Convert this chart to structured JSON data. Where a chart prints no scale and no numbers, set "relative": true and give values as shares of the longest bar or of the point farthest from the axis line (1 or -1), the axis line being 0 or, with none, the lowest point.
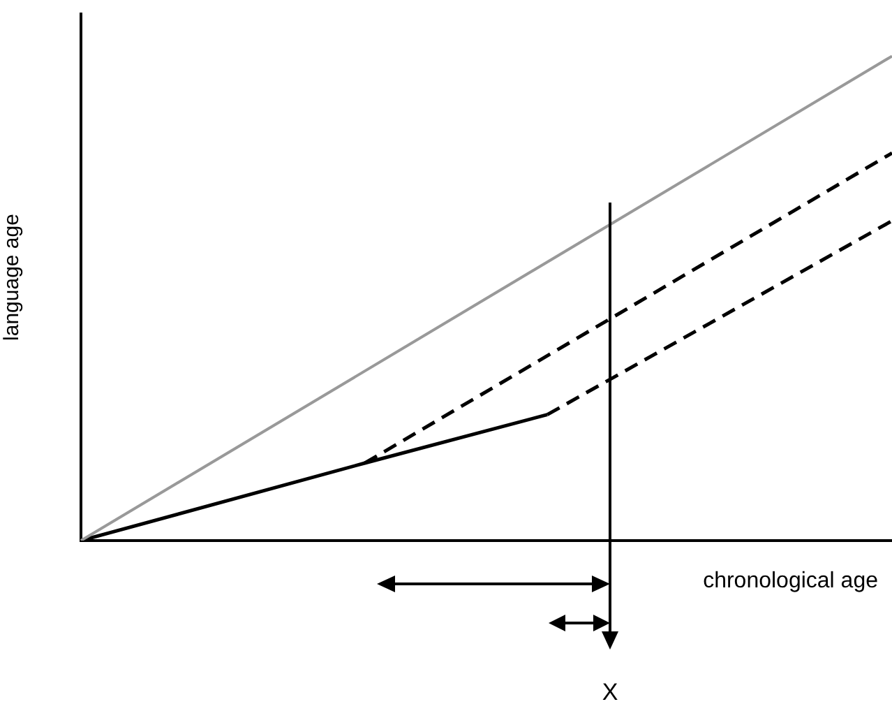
{
  "chart_data": {
    "type": "line",
    "relative": true,
    "xlabel": "chronological age",
    "ylabel": "language age",
    "legend": false,
    "grid": false,
    "marker": "none",
    "categories": [
      null,
      null,
      null,
      null,
      null,
      null,
      null,
      null,
      null,
      null,
      null,
      null,
      null,
      null,
      null,
      null,
      null,
      null,
      null,
      null,
      null,
      null,
      null,
      null,
      null,
      null,
      null,
      null,
      null,
      null,
      null,
      null,
      null,
      null,
      null,
      null,
      null,
      null,
      null,
      null,
      null
    ],
    "annotations": [
      "X"
    ],
    "series": [
      {
        "color": "#999999",
        "line_style": "solid",
        "values": [
          0,
          null,
          null,
          null,
          null,
          null,
          null,
          null,
          null,
          null,
          null,
          null,
          null,
          null,
          null,
          null,
          null,
          null,
          null,
          null,
          null,
          null,
          null,
          null,
          null,
          null,
          null,
          null,
          null,
          null,
          null,
          null,
          null,
          null,
          null,
          null,
          null,
          null,
          null,
          null,
          1
        ]
      },
      {
        "color": "#000000",
        "line_style": "solid",
        "values": [
          0,
          null,
          null,
          null,
          null,
          null,
          null,
          null,
          null,
          null,
          null,
          null,
          null,
          null,
          0.16,
          null,
          null,
          null,
          null,
          null,
          null,
          null,
          null,
          0.26,
          null,
          null,
          null,
          null,
          null,
          null,
          null,
          null,
          null,
          null,
          null,
          null,
          null,
          null,
          null,
          null,
          null
        ]
      },
      {
        "color": "#000000",
        "line_style": "dashed",
        "values": [
          null,
          null,
          null,
          null,
          null,
          null,
          null,
          null,
          null,
          null,
          null,
          null,
          null,
          null,
          0.16,
          null,
          null,
          null,
          null,
          null,
          null,
          null,
          null,
          null,
          null,
          null,
          null,
          null,
          null,
          null,
          null,
          null,
          null,
          null,
          null,
          null,
          null,
          null,
          null,
          null,
          0.8
        ]
      },
      {
        "color": "#000000",
        "line_style": "dashed",
        "values": [
          null,
          null,
          null,
          null,
          null,
          null,
          null,
          null,
          null,
          null,
          null,
          null,
          null,
          null,
          null,
          null,
          null,
          null,
          null,
          null,
          null,
          null,
          null,
          0.26,
          null,
          null,
          null,
          null,
          null,
          null,
          null,
          null,
          null,
          null,
          null,
          null,
          null,
          null,
          null,
          null,
          0.66
        ]
      }
    ]
  }
}
